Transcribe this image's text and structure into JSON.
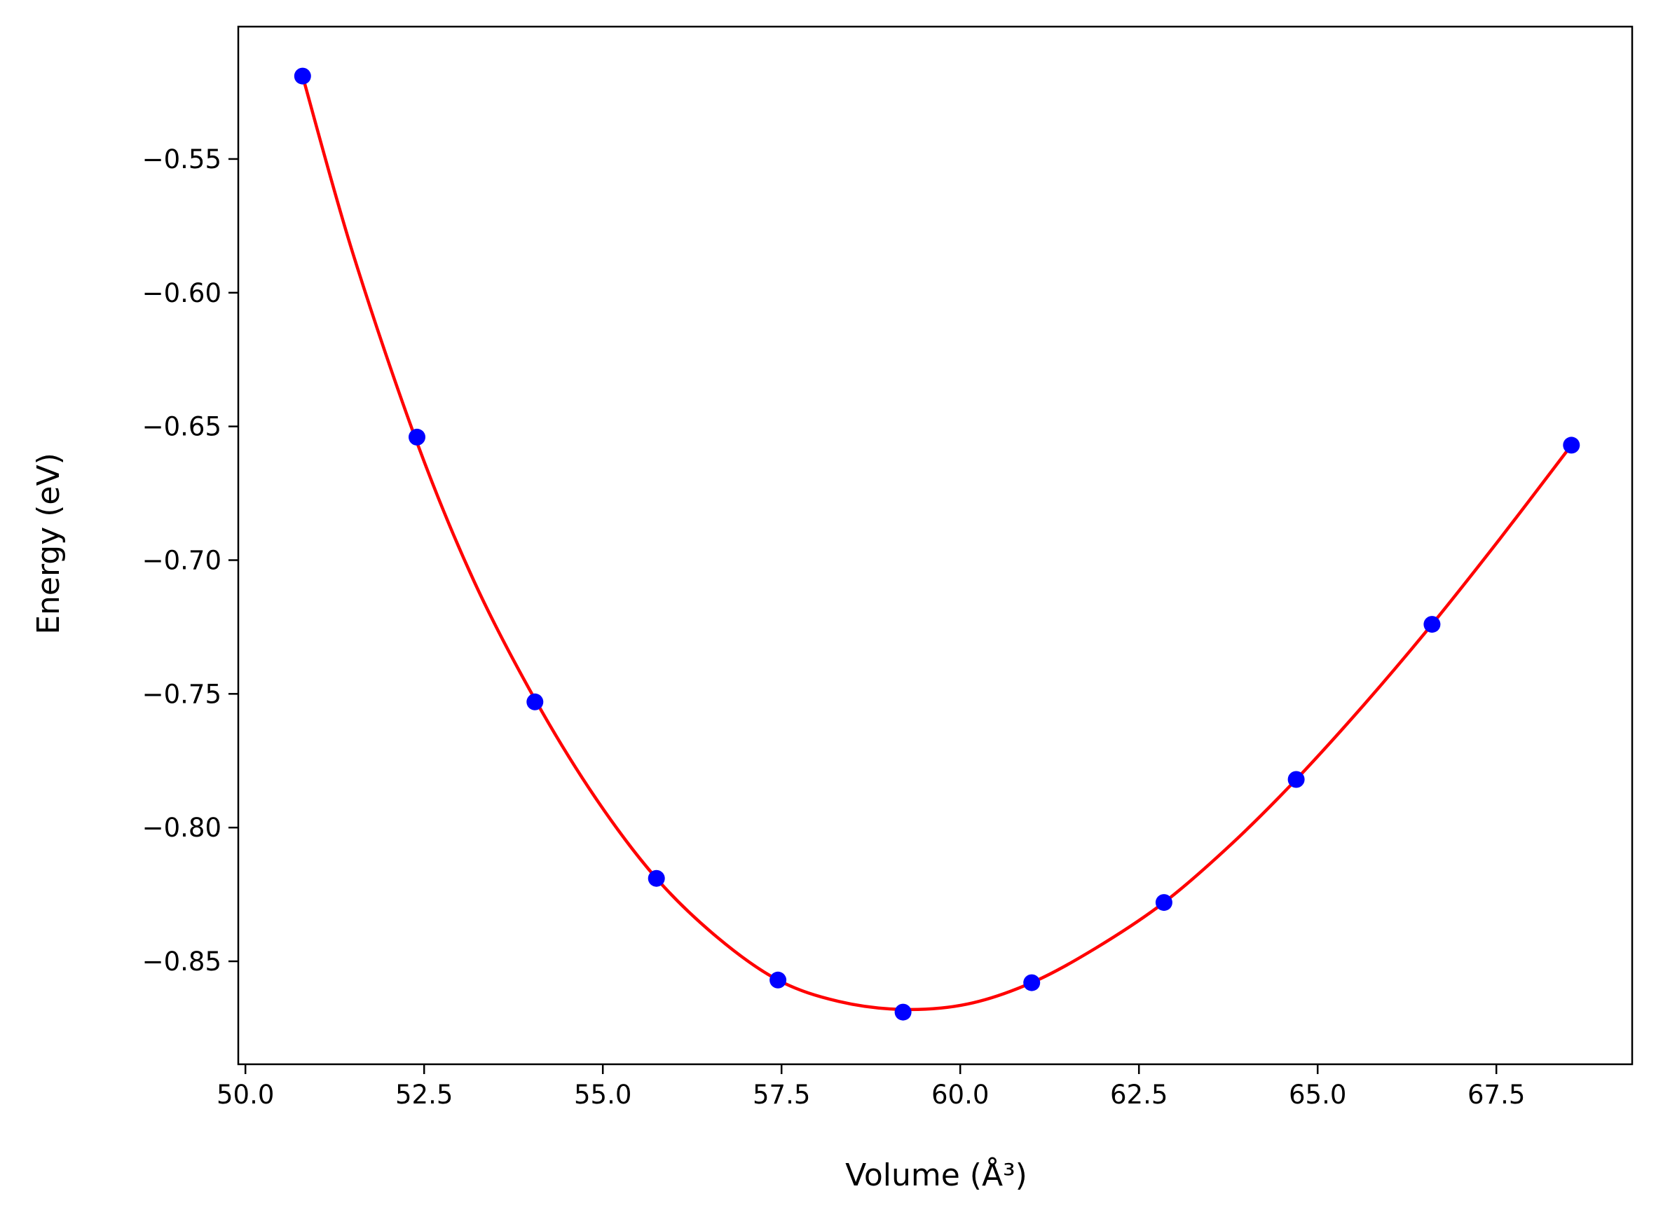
{
  "chart_data": {
    "type": "scatter",
    "xlabel": "Volume (Å³)",
    "ylabel": "Energy (eV)",
    "xlim": [
      49.9,
      69.4
    ],
    "ylim": [
      -0.8885,
      -0.5005
    ],
    "xticks": [
      50.0,
      52.5,
      55.0,
      57.5,
      60.0,
      62.5,
      65.0,
      67.5
    ],
    "xtick_labels": [
      "50.0",
      "52.5",
      "55.0",
      "57.5",
      "60.0",
      "62.5",
      "65.0",
      "67.5"
    ],
    "yticks": [
      -0.55,
      -0.6,
      -0.65,
      -0.7,
      -0.75,
      -0.8,
      -0.85
    ],
    "ytick_labels": [
      "−0.55",
      "−0.60",
      "−0.65",
      "−0.70",
      "−0.75",
      "−0.80",
      "−0.85"
    ],
    "grid": false,
    "series": [
      {
        "mode": "markers",
        "color": "#0000ff",
        "x": [
          50.8,
          52.4,
          54.05,
          55.75,
          57.45,
          59.2,
          61.0,
          62.85,
          64.7,
          66.6,
          68.55
        ],
        "y": [
          -0.519,
          -0.654,
          -0.753,
          -0.819,
          -0.857,
          -0.869,
          -0.858,
          -0.828,
          -0.782,
          -0.724,
          -0.657
        ]
      },
      {
        "mode": "line",
        "color": "#ff0000",
        "x": [
          50.8,
          51.5,
          52.4,
          53.2,
          54.05,
          54.9,
          55.75,
          56.6,
          57.45,
          58.3,
          59.2,
          60.1,
          61.0,
          61.9,
          62.85,
          63.8,
          64.7,
          65.65,
          66.6,
          67.55,
          68.55
        ],
        "y": [
          -0.519,
          -0.585,
          -0.656,
          -0.708,
          -0.752,
          -0.789,
          -0.819,
          -0.841,
          -0.857,
          -0.865,
          -0.868,
          -0.866,
          -0.858,
          -0.845,
          -0.828,
          -0.806,
          -0.782,
          -0.754,
          -0.724,
          -0.692,
          -0.657
        ]
      }
    ]
  }
}
